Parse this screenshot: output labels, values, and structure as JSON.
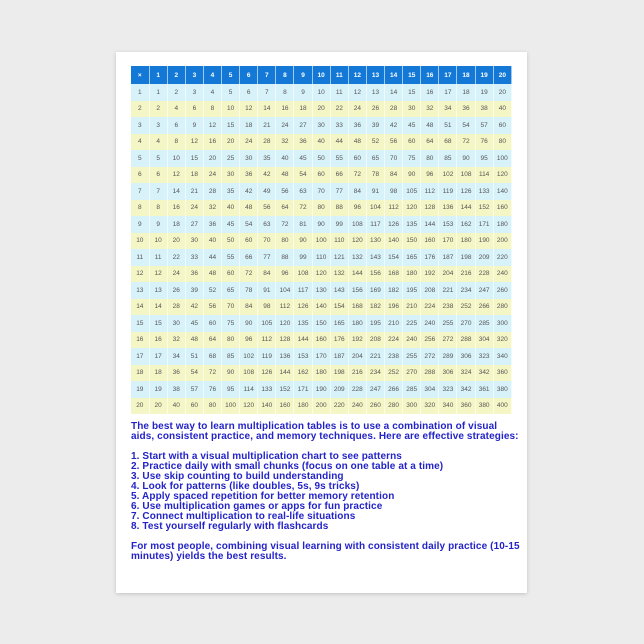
{
  "table": {
    "corner": "×",
    "headers": [
      1,
      2,
      3,
      4,
      5,
      6,
      7,
      8,
      9,
      10,
      11,
      12,
      13,
      14,
      15,
      16,
      17,
      18,
      19,
      20
    ],
    "rows": [
      [
        1,
        1,
        2,
        3,
        4,
        5,
        6,
        7,
        8,
        9,
        10,
        11,
        12,
        13,
        14,
        15,
        16,
        17,
        18,
        19,
        20
      ],
      [
        2,
        2,
        4,
        6,
        8,
        10,
        12,
        14,
        16,
        18,
        20,
        22,
        24,
        26,
        28,
        30,
        32,
        34,
        36,
        38,
        40
      ],
      [
        3,
        3,
        6,
        9,
        12,
        15,
        18,
        21,
        24,
        27,
        30,
        33,
        36,
        39,
        42,
        45,
        48,
        51,
        54,
        57,
        60
      ],
      [
        4,
        4,
        8,
        12,
        16,
        20,
        24,
        28,
        32,
        36,
        40,
        44,
        48,
        52,
        56,
        60,
        64,
        68,
        72,
        76,
        80
      ],
      [
        5,
        5,
        10,
        15,
        20,
        25,
        30,
        35,
        40,
        45,
        50,
        55,
        60,
        65,
        70,
        75,
        80,
        85,
        90,
        95,
        100
      ],
      [
        6,
        6,
        12,
        18,
        24,
        30,
        36,
        42,
        48,
        54,
        60,
        66,
        72,
        78,
        84,
        90,
        96,
        102,
        108,
        114,
        120
      ],
      [
        7,
        7,
        14,
        21,
        28,
        35,
        42,
        49,
        56,
        63,
        70,
        77,
        84,
        91,
        98,
        105,
        112,
        119,
        126,
        133,
        140
      ],
      [
        8,
        8,
        16,
        24,
        32,
        40,
        48,
        56,
        64,
        72,
        80,
        88,
        96,
        104,
        112,
        120,
        128,
        136,
        144,
        152,
        160
      ],
      [
        9,
        9,
        18,
        27,
        36,
        45,
        54,
        63,
        72,
        81,
        90,
        99,
        108,
        117,
        126,
        135,
        144,
        153,
        162,
        171,
        180
      ],
      [
        10,
        10,
        20,
        30,
        40,
        50,
        60,
        70,
        80,
        90,
        100,
        110,
        120,
        130,
        140,
        150,
        160,
        170,
        180,
        190,
        200
      ],
      [
        11,
        11,
        22,
        33,
        44,
        55,
        66,
        77,
        88,
        99,
        110,
        121,
        132,
        143,
        154,
        165,
        176,
        187,
        198,
        209,
        220
      ],
      [
        12,
        12,
        24,
        36,
        48,
        60,
        72,
        84,
        96,
        108,
        120,
        132,
        144,
        156,
        168,
        180,
        192,
        204,
        216,
        228,
        240
      ],
      [
        13,
        13,
        26,
        39,
        52,
        65,
        78,
        91,
        104,
        117,
        130,
        143,
        156,
        169,
        182,
        195,
        208,
        221,
        234,
        247,
        260
      ],
      [
        14,
        14,
        28,
        42,
        56,
        70,
        84,
        98,
        112,
        126,
        140,
        154,
        168,
        182,
        196,
        210,
        224,
        238,
        252,
        266,
        280
      ],
      [
        15,
        15,
        30,
        45,
        60,
        75,
        90,
        105,
        120,
        135,
        150,
        165,
        180,
        195,
        210,
        225,
        240,
        255,
        270,
        285,
        300
      ],
      [
        16,
        16,
        32,
        48,
        64,
        80,
        96,
        112,
        128,
        144,
        160,
        176,
        192,
        208,
        224,
        240,
        256,
        272,
        288,
        304,
        320
      ],
      [
        17,
        17,
        34,
        51,
        68,
        85,
        102,
        119,
        136,
        153,
        170,
        187,
        204,
        221,
        238,
        255,
        272,
        289,
        306,
        323,
        340
      ],
      [
        18,
        18,
        36,
        54,
        72,
        90,
        108,
        126,
        144,
        162,
        180,
        198,
        216,
        234,
        252,
        270,
        288,
        306,
        324,
        342,
        360
      ],
      [
        19,
        19,
        38,
        57,
        76,
        95,
        114,
        133,
        152,
        171,
        190,
        209,
        228,
        247,
        266,
        285,
        304,
        323,
        342,
        361,
        380
      ],
      [
        20,
        20,
        40,
        60,
        80,
        100,
        120,
        140,
        160,
        180,
        200,
        220,
        240,
        260,
        280,
        300,
        320,
        340,
        360,
        380,
        400
      ]
    ]
  },
  "intro": "The best way to learn multiplication tables is to use a combination of visual aids, consistent practice, and memory techniques. Here are effective strategies:",
  "strategies": [
    "1. Start with a visual multiplication chart to see patterns",
    "2. Practice daily with small chunks (focus on one table at a time)",
    "3. Use skip counting to build understanding",
    "4. Look for patterns (like doubles, 5s, 9s tricks)",
    "5. Apply spaced repetition for better memory retention",
    "6. Use multiplication games or apps for fun practice",
    "7. Connect multiplication to real-life situations",
    "8. Test yourself regularly with flashcards"
  ],
  "conclusion": "For most people, combining visual learning with consistent daily practice (10-15 minutes) yields the best results.",
  "colors": {
    "header": "#1479d6",
    "row_odd": "#d8f2fa",
    "row_even": "#f4f6c6",
    "text": "#2323c8"
  }
}
